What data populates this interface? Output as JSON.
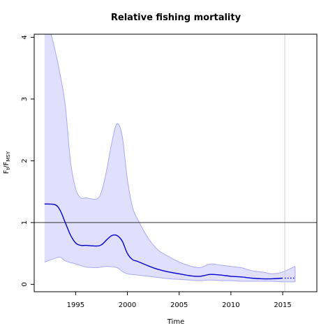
{
  "chart_data": {
    "type": "line",
    "title": "Relative fishing mortality",
    "xlabel": "Time",
    "ylabel": {
      "main": "F",
      "sub1": "t",
      "slash": "/F",
      "sub2": "MSY"
    },
    "xlim": [
      1991.0,
      2018.3
    ],
    "ylim": [
      -0.12,
      4.05
    ],
    "x_ticks": [
      1995,
      2000,
      2005,
      2010,
      2015
    ],
    "y_ticks": [
      0,
      1,
      2,
      3,
      4
    ],
    "reference_line_y": 1,
    "last_data_year": 2015.2,
    "grid": false,
    "legend": "none",
    "colors": {
      "line": "#0000cc",
      "band_fill": "#e0e0fd",
      "band_edge": "#a8a8f4",
      "reference_line": "#333333",
      "marker_line": "#d0d0d0"
    },
    "series": [
      {
        "role": "estimate",
        "x": [
          1992,
          1993,
          1993.5,
          1994,
          1994.5,
          1995,
          1995.5,
          1996,
          1997,
          1997.5,
          1998,
          1998.5,
          1999,
          1999.5,
          2000,
          2000.5,
          2001,
          2002,
          2003,
          2004,
          2005,
          2006,
          2007,
          2008,
          2009,
          2010,
          2011,
          2012,
          2013,
          2014,
          2015
        ],
        "y": [
          1.3,
          1.29,
          1.2,
          1.0,
          0.8,
          0.67,
          0.63,
          0.63,
          0.62,
          0.64,
          0.72,
          0.79,
          0.79,
          0.7,
          0.5,
          0.4,
          0.37,
          0.3,
          0.24,
          0.2,
          0.17,
          0.14,
          0.13,
          0.16,
          0.15,
          0.13,
          0.12,
          0.1,
          0.09,
          0.09,
          0.1
        ]
      },
      {
        "role": "upper",
        "x": [
          1992,
          1992.5,
          1993,
          1993.5,
          1994,
          1994.5,
          1995,
          1995.5,
          1996,
          1997,
          1997.5,
          1998,
          1998.5,
          1999,
          1999.5,
          2000,
          2000.5,
          2001,
          2002,
          2003,
          2004,
          2005,
          2006,
          2007,
          2008,
          2009,
          2010,
          2011,
          2012,
          2013,
          2014,
          2015,
          2016.2
        ],
        "y": [
          4.1,
          4.1,
          3.8,
          3.4,
          2.9,
          2.0,
          1.55,
          1.4,
          1.4,
          1.38,
          1.5,
          1.85,
          2.3,
          2.6,
          2.4,
          1.7,
          1.25,
          1.05,
          0.75,
          0.55,
          0.45,
          0.36,
          0.3,
          0.27,
          0.33,
          0.31,
          0.29,
          0.27,
          0.22,
          0.2,
          0.17,
          0.2,
          0.29
        ]
      },
      {
        "role": "lower",
        "x": [
          1992,
          1993,
          1993.5,
          1994,
          1995,
          1996,
          1997,
          1998,
          1999,
          1999.5,
          2000,
          2001,
          2002,
          2003,
          2004,
          2005,
          2006,
          2007,
          2008,
          2009,
          2010,
          2011,
          2012,
          2013,
          2014,
          2015,
          2016.2
        ],
        "y": [
          0.36,
          0.42,
          0.44,
          0.38,
          0.33,
          0.28,
          0.27,
          0.29,
          0.27,
          0.21,
          0.17,
          0.15,
          0.13,
          0.11,
          0.09,
          0.08,
          0.07,
          0.06,
          0.07,
          0.06,
          0.06,
          0.05,
          0.05,
          0.05,
          0.05,
          0.04,
          0.04
        ]
      },
      {
        "role": "projection",
        "x": [
          2015.2,
          2016.2
        ],
        "y": [
          0.1,
          0.1
        ]
      }
    ]
  }
}
